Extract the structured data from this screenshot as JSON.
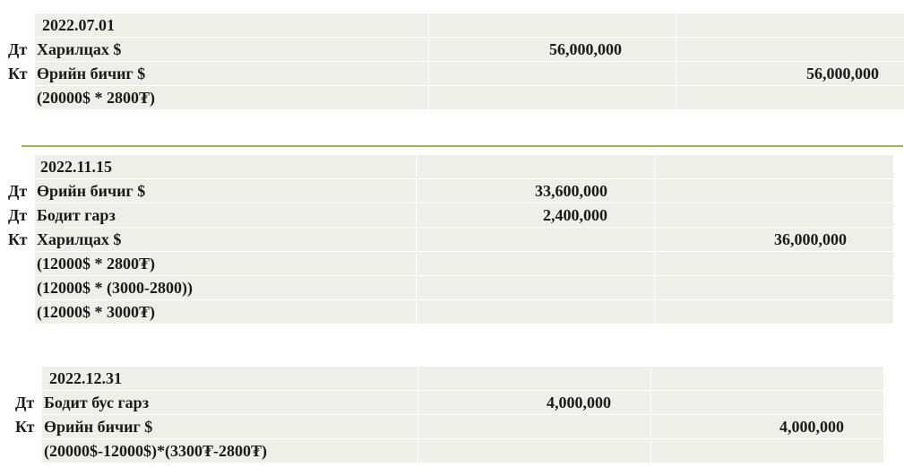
{
  "entries": [
    {
      "date": "2022.07.01",
      "rows": [
        {
          "type": "Дт",
          "account": "Харилцах $",
          "debit": "56,000,000",
          "credit": ""
        },
        {
          "type": "Кт",
          "account": "Өрийн бичиг $",
          "debit": "",
          "credit": "56,000,000"
        },
        {
          "type": "",
          "account": "(20000$ * 2800₮)",
          "debit": "",
          "credit": ""
        }
      ]
    },
    {
      "date": "2022.11.15",
      "rows": [
        {
          "type": "Дт",
          "account": "Өрийн бичиг $",
          "debit": "33,600,000",
          "credit": ""
        },
        {
          "type": "Дт",
          "account": "Бодит гарз",
          "debit": "2,400,000",
          "credit": ""
        },
        {
          "type": "Кт",
          "account": "Харилцах $",
          "debit": "",
          "credit": "36,000,000"
        },
        {
          "type": "",
          "account": "(12000$ * 2800₮)",
          "debit": "",
          "credit": ""
        },
        {
          "type": "",
          "account": "(12000$ * (3000-2800))",
          "debit": "",
          "credit": ""
        },
        {
          "type": "",
          "account": "(12000$ * 3000₮)",
          "debit": "",
          "credit": ""
        }
      ]
    },
    {
      "date": "2022.12.31",
      "rows": [
        {
          "type": "Дт",
          "account": "Бодит бус гарз",
          "debit": "4,000,000",
          "credit": ""
        },
        {
          "type": "Кт",
          "account": "Өрийн бичиг $",
          "debit": "",
          "credit": "4,000,000"
        },
        {
          "type": "",
          "account": "(20000$-12000$)*(3300₮-2800₮)",
          "debit": "",
          "credit": ""
        }
      ]
    }
  ],
  "colors": {
    "accent_line": "#9ab84c",
    "cell_bg": "#efefea"
  }
}
